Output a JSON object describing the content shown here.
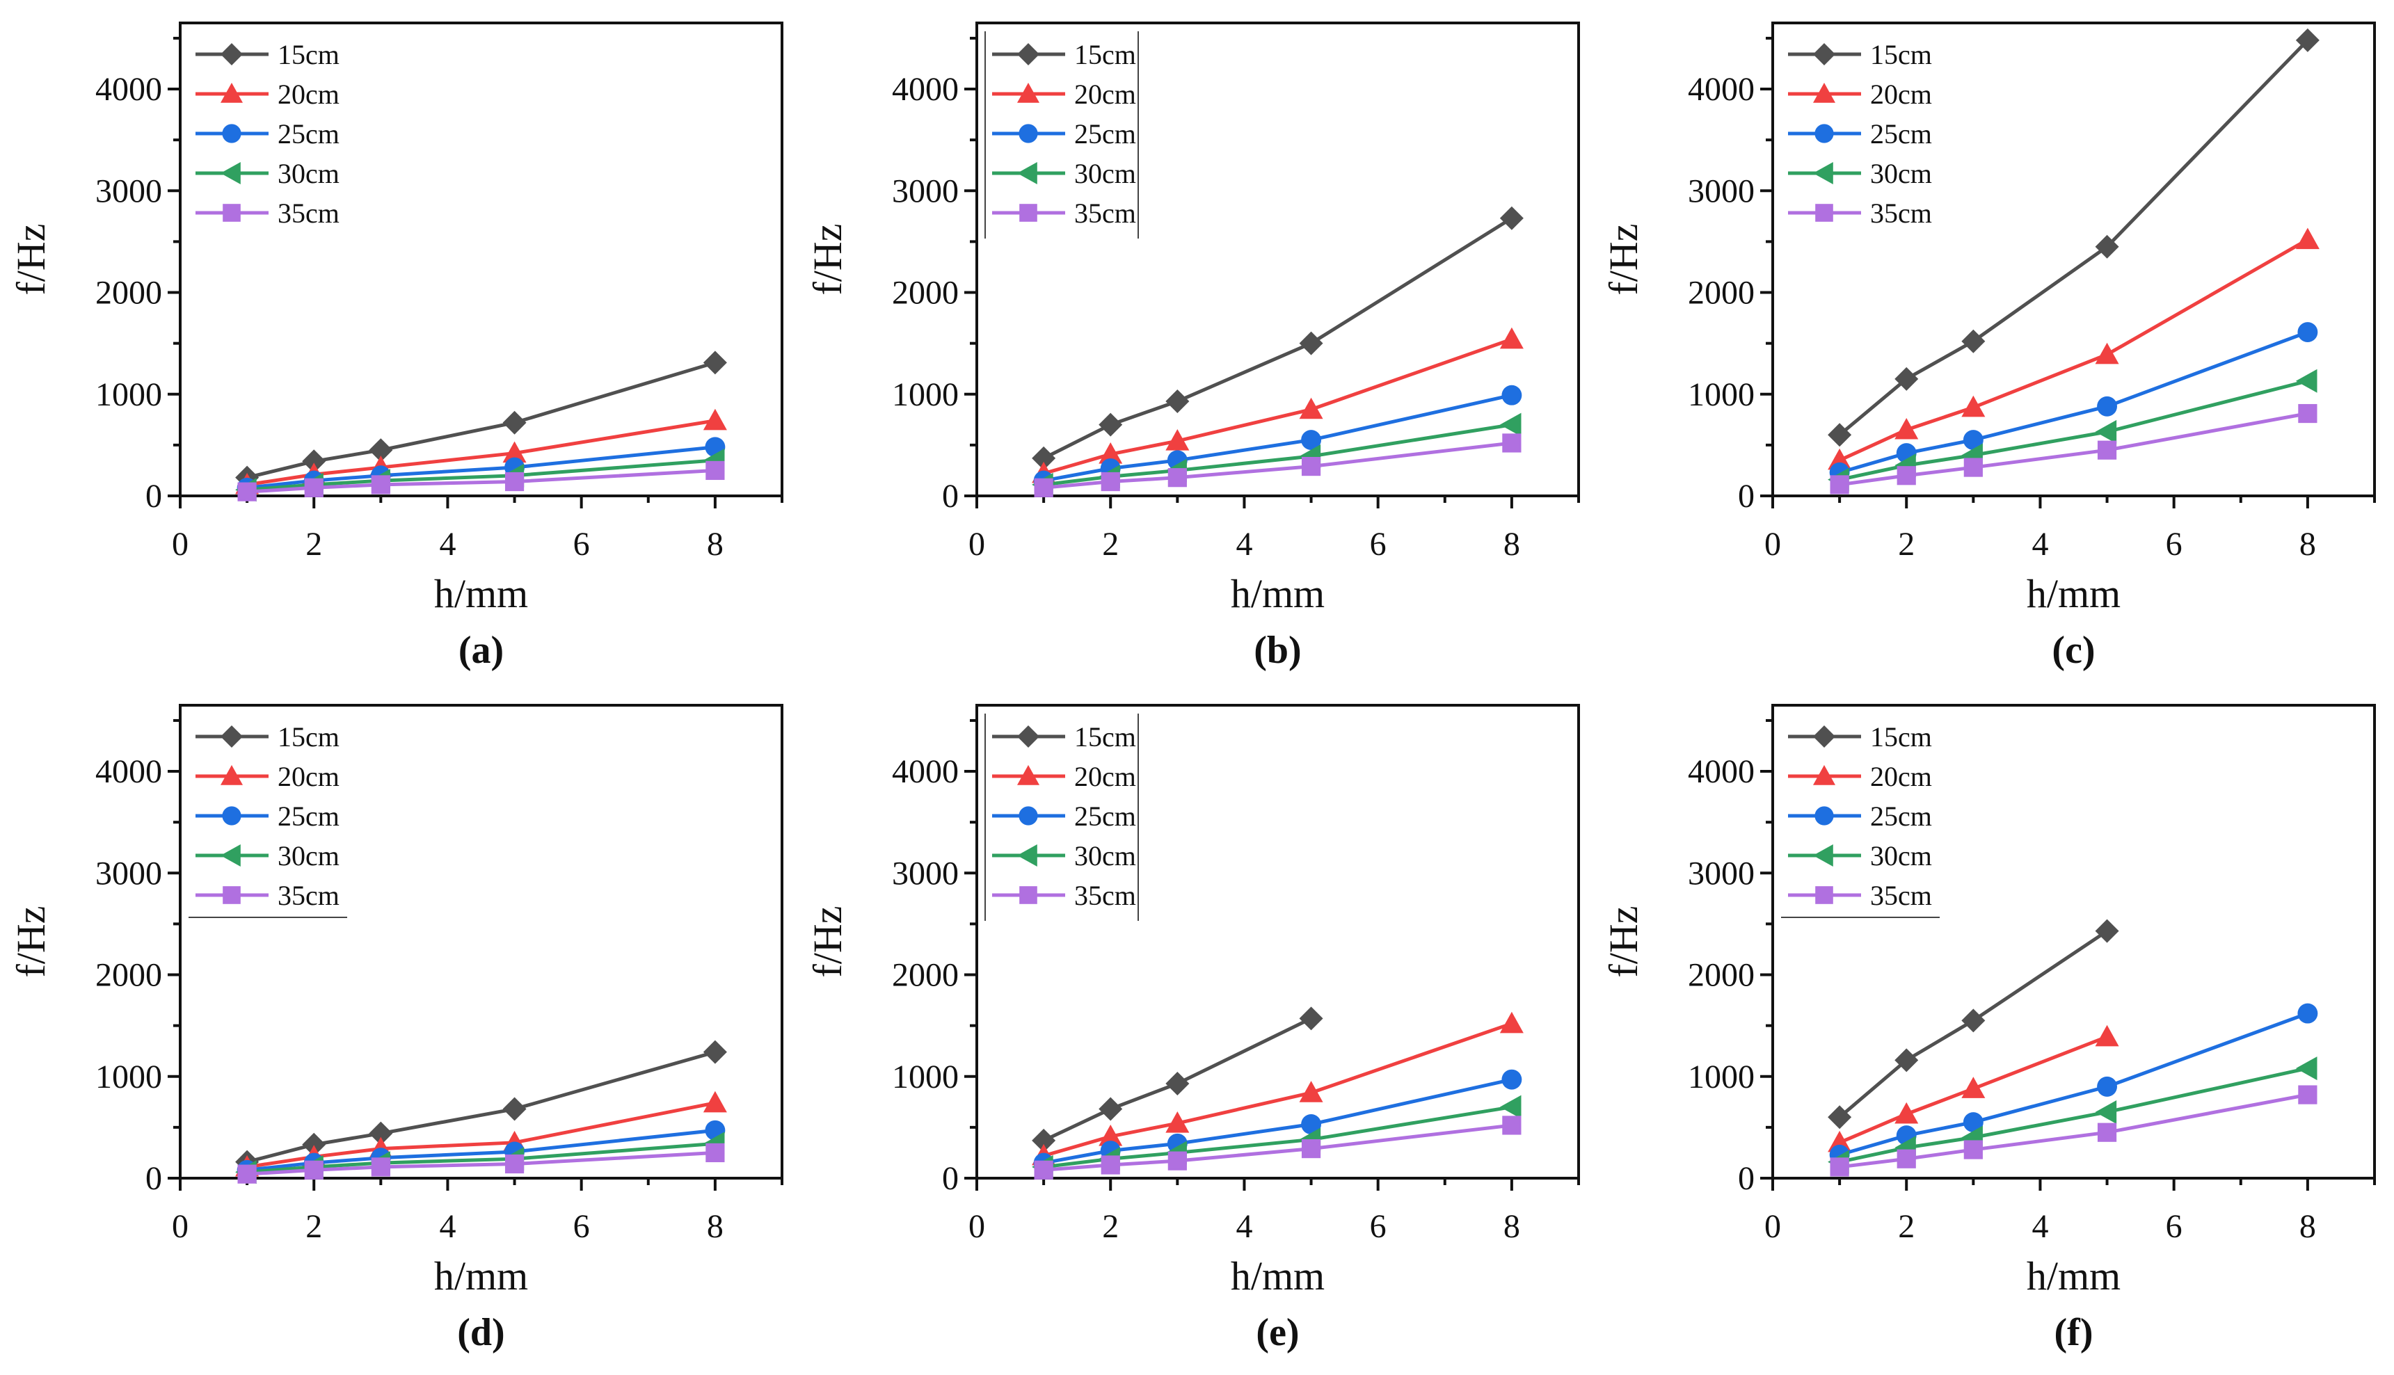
{
  "chart_data": [
    {
      "type": "line",
      "panel_label": "(a)",
      "xlabel": "h/mm",
      "ylabel": "f/Hz",
      "xlim": [
        0,
        9
      ],
      "ylim": [
        0,
        4650
      ],
      "xticks": [
        "0",
        "2",
        "4",
        "6",
        "8"
      ],
      "yticks": [
        "0",
        "1000",
        "2000",
        "3000",
        "4000"
      ],
      "legend_position": "top-left",
      "series": [
        {
          "name": "15cm",
          "x": [
            1,
            2,
            3,
            5,
            8
          ],
          "values": [
            180,
            340,
            450,
            720,
            1310
          ]
        },
        {
          "name": "20cm",
          "x": [
            1,
            2,
            3,
            5,
            8
          ],
          "values": [
            110,
            210,
            280,
            420,
            740
          ]
        },
        {
          "name": "25cm",
          "x": [
            1,
            2,
            3,
            5,
            8
          ],
          "values": [
            80,
            150,
            200,
            280,
            480
          ]
        },
        {
          "name": "30cm",
          "x": [
            1,
            2,
            3,
            5,
            8
          ],
          "values": [
            60,
            110,
            150,
            200,
            350
          ]
        },
        {
          "name": "35cm",
          "x": [
            1,
            2,
            3,
            5,
            8
          ],
          "values": [
            40,
            80,
            110,
            140,
            250
          ]
        }
      ]
    },
    {
      "type": "line",
      "panel_label": "(b)",
      "xlabel": "h/mm",
      "ylabel": "f/Hz",
      "xlim": [
        0,
        9
      ],
      "ylim": [
        0,
        4650
      ],
      "xticks": [
        "0",
        "2",
        "4",
        "6",
        "8"
      ],
      "yticks": [
        "0",
        "1000",
        "2000",
        "3000",
        "4000"
      ],
      "legend_position": "top-left",
      "series": [
        {
          "name": "15cm",
          "x": [
            1,
            2,
            3,
            5,
            8
          ],
          "values": [
            370,
            700,
            930,
            1500,
            2730
          ]
        },
        {
          "name": "20cm",
          "x": [
            1,
            2,
            3,
            5,
            8
          ],
          "values": [
            220,
            410,
            540,
            850,
            1540
          ]
        },
        {
          "name": "25cm",
          "x": [
            1,
            2,
            3,
            5,
            8
          ],
          "values": [
            150,
            270,
            350,
            550,
            990
          ]
        },
        {
          "name": "30cm",
          "x": [
            1,
            2,
            3,
            5,
            8
          ],
          "values": [
            110,
            190,
            250,
            390,
            700
          ]
        },
        {
          "name": "35cm",
          "x": [
            1,
            2,
            3,
            5,
            8
          ],
          "values": [
            80,
            140,
            180,
            290,
            520
          ]
        }
      ]
    },
    {
      "type": "line",
      "panel_label": "(c)",
      "xlabel": "h/mm",
      "ylabel": "f/Hz",
      "xlim": [
        0,
        9
      ],
      "ylim": [
        0,
        4650
      ],
      "xticks": [
        "0",
        "2",
        "4",
        "6",
        "8"
      ],
      "yticks": [
        "0",
        "1000",
        "2000",
        "3000",
        "4000"
      ],
      "legend_position": "top-left",
      "series": [
        {
          "name": "15cm",
          "x": [
            1,
            2,
            3,
            5,
            8
          ],
          "values": [
            600,
            1150,
            1520,
            2450,
            4480
          ]
        },
        {
          "name": "20cm",
          "x": [
            1,
            2,
            3,
            5,
            8
          ],
          "values": [
            350,
            650,
            870,
            1390,
            2520
          ]
        },
        {
          "name": "25cm",
          "x": [
            1,
            2,
            3,
            5,
            8
          ],
          "values": [
            230,
            420,
            550,
            880,
            1610
          ]
        },
        {
          "name": "30cm",
          "x": [
            1,
            2,
            3,
            5,
            8
          ],
          "values": [
            160,
            300,
            400,
            630,
            1130
          ]
        },
        {
          "name": "35cm",
          "x": [
            1,
            2,
            3,
            5,
            8
          ],
          "values": [
            110,
            200,
            280,
            450,
            810
          ]
        }
      ]
    },
    {
      "type": "line",
      "panel_label": "(d)",
      "xlabel": "h/mm",
      "ylabel": "f/Hz",
      "xlim": [
        0,
        9
      ],
      "ylim": [
        0,
        4650
      ],
      "xticks": [
        "0",
        "2",
        "4",
        "6",
        "8"
      ],
      "yticks": [
        "0",
        "1000",
        "2000",
        "3000",
        "4000"
      ],
      "legend_position": "top-left",
      "series": [
        {
          "name": "15cm",
          "x": [
            1,
            2,
            3,
            5,
            8
          ],
          "values": [
            160,
            330,
            440,
            680,
            1240
          ]
        },
        {
          "name": "20cm",
          "x": [
            1,
            2,
            3,
            5,
            8
          ],
          "values": [
            110,
            210,
            290,
            350,
            740
          ]
        },
        {
          "name": "25cm",
          "x": [
            1,
            2,
            3,
            5,
            8
          ],
          "values": [
            80,
            150,
            200,
            260,
            470
          ]
        },
        {
          "name": "30cm",
          "x": [
            1,
            2,
            3,
            5,
            8
          ],
          "values": [
            60,
            110,
            150,
            190,
            340
          ]
        },
        {
          "name": "35cm",
          "x": [
            1,
            2,
            3,
            5,
            8
          ],
          "values": [
            40,
            80,
            110,
            140,
            250
          ]
        }
      ]
    },
    {
      "type": "line",
      "panel_label": "(e)",
      "xlabel": "h/mm",
      "ylabel": "f/Hz",
      "xlim": [
        0,
        9
      ],
      "ylim": [
        0,
        4650
      ],
      "xticks": [
        "0",
        "2",
        "4",
        "6",
        "8"
      ],
      "yticks": [
        "0",
        "1000",
        "2000",
        "3000",
        "4000"
      ],
      "legend_position": "top-left",
      "series": [
        {
          "name": "15cm",
          "x": [
            1,
            2,
            3,
            5
          ],
          "values": [
            370,
            680,
            930,
            1570
          ]
        },
        {
          "name": "20cm",
          "x": [
            1,
            2,
            3,
            5,
            8
          ],
          "values": [
            220,
            410,
            540,
            840,
            1520
          ]
        },
        {
          "name": "25cm",
          "x": [
            1,
            2,
            3,
            5,
            8
          ],
          "values": [
            150,
            270,
            340,
            530,
            970
          ]
        },
        {
          "name": "30cm",
          "x": [
            1,
            2,
            3,
            5,
            8
          ],
          "values": [
            110,
            190,
            250,
            380,
            700
          ]
        },
        {
          "name": "35cm",
          "x": [
            1,
            2,
            3,
            5,
            8
          ],
          "values": [
            80,
            130,
            170,
            290,
            520
          ]
        }
      ]
    },
    {
      "type": "line",
      "panel_label": "(f)",
      "xlabel": "h/mm",
      "ylabel": "f/Hz",
      "xlim": [
        0,
        9
      ],
      "ylim": [
        0,
        4650
      ],
      "xticks": [
        "0",
        "2",
        "4",
        "6",
        "8"
      ],
      "yticks": [
        "0",
        "1000",
        "2000",
        "3000",
        "4000"
      ],
      "legend_position": "top-left",
      "series": [
        {
          "name": "15cm",
          "x": [
            1,
            2,
            3,
            5
          ],
          "values": [
            600,
            1160,
            1550,
            2430
          ]
        },
        {
          "name": "20cm",
          "x": [
            1,
            2,
            3,
            5
          ],
          "values": [
            350,
            630,
            880,
            1390
          ]
        },
        {
          "name": "25cm",
          "x": [
            1,
            2,
            3,
            5,
            8
          ],
          "values": [
            230,
            420,
            550,
            900,
            1620
          ]
        },
        {
          "name": "30cm",
          "x": [
            1,
            2,
            3,
            5,
            8
          ],
          "values": [
            160,
            300,
            400,
            650,
            1080
          ]
        },
        {
          "name": "35cm",
          "x": [
            1,
            2,
            3,
            5,
            8
          ],
          "values": [
            110,
            190,
            280,
            450,
            820
          ]
        }
      ]
    }
  ],
  "series_style": [
    {
      "color": "#505050",
      "marker": "diamond"
    },
    {
      "color": "#f04040",
      "marker": "triangle-up"
    },
    {
      "color": "#1e6fe0",
      "marker": "circle"
    },
    {
      "color": "#30a060",
      "marker": "triangle-left"
    },
    {
      "color": "#b070e0",
      "marker": "square"
    }
  ]
}
